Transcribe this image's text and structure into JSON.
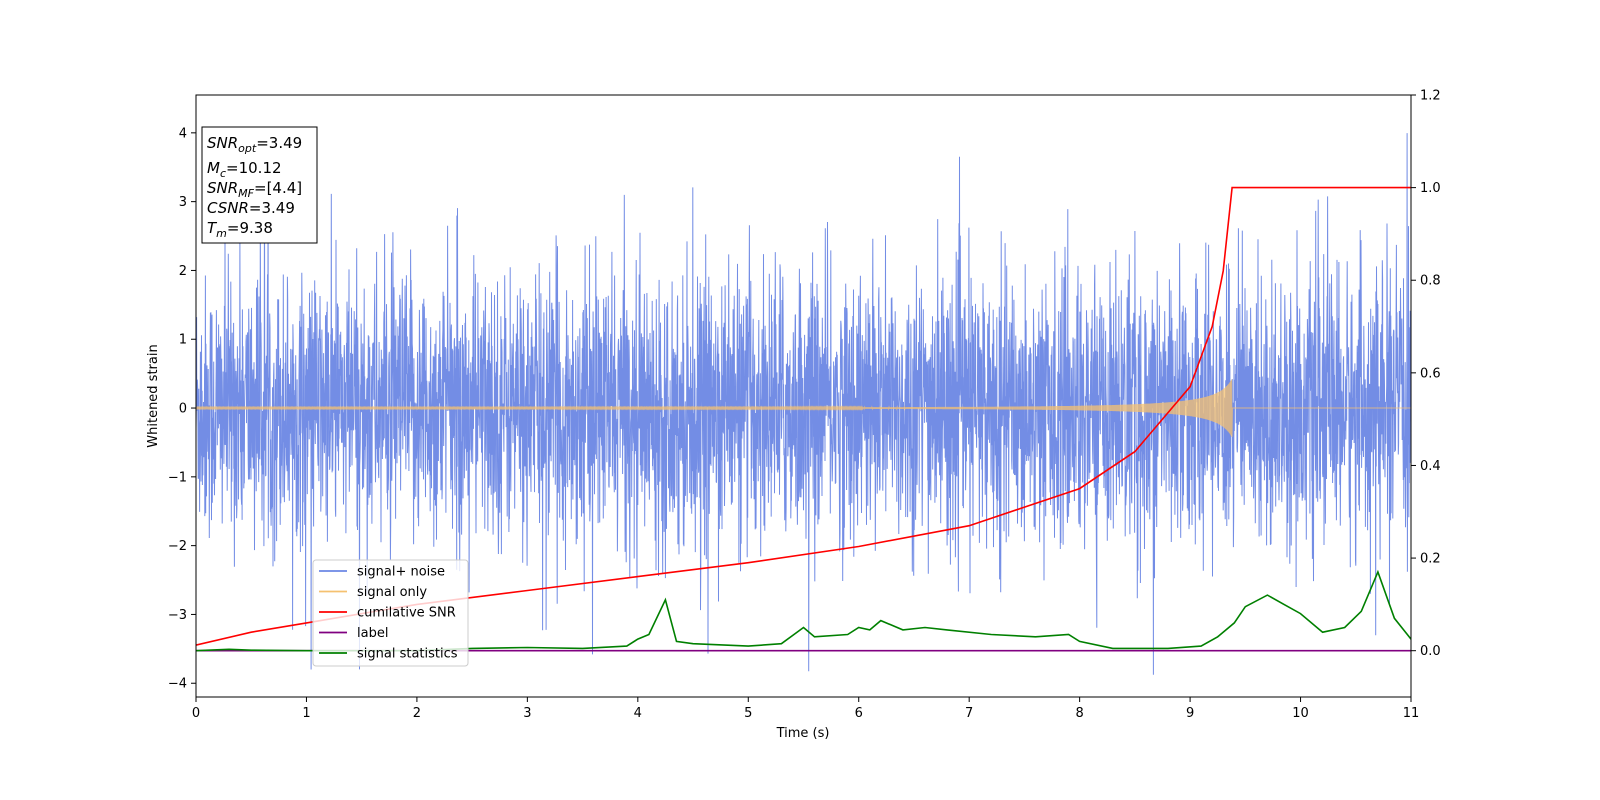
{
  "chart_data": {
    "type": "line",
    "xlabel": "Time (s)",
    "ylabel": "Whitened strain",
    "xlim": [
      0,
      11
    ],
    "ylim_left": [
      -4.2,
      4.55
    ],
    "ylim_right": [
      -0.1,
      1.2
    ],
    "x_ticks": [
      "0",
      "1",
      "2",
      "3",
      "4",
      "5",
      "6",
      "7",
      "8",
      "9",
      "10",
      "11"
    ],
    "y_left_ticks": [
      "−4",
      "−3",
      "−2",
      "−1",
      "0",
      "1",
      "2",
      "3",
      "4"
    ],
    "y_right_ticks": [
      "0.0",
      "0.2",
      "0.4",
      "0.6",
      "0.8",
      "1.0",
      "1.2"
    ],
    "grid": false,
    "legend_position": "lower-left",
    "series": [
      {
        "name": "signal+ noise",
        "axis": "left",
        "color": "#6b87e4",
        "noise_std": 0.95,
        "spike_range": [
          -3.8,
          4.15
        ]
      },
      {
        "name": "signal only",
        "axis": "left",
        "color": "#f5c170",
        "merger_time": 9.38,
        "peak_amplitude": 0.42
      },
      {
        "name": "cumilative SNR",
        "axis": "right",
        "color": "#ff0000",
        "points": [
          [
            0,
            0.012
          ],
          [
            0.5,
            0.04
          ],
          [
            1,
            0.06
          ],
          [
            2,
            0.1
          ],
          [
            3,
            0.13
          ],
          [
            4,
            0.16
          ],
          [
            5,
            0.19
          ],
          [
            6,
            0.225
          ],
          [
            7,
            0.27
          ],
          [
            8,
            0.35
          ],
          [
            8.5,
            0.43
          ],
          [
            9,
            0.57
          ],
          [
            9.2,
            0.7
          ],
          [
            9.3,
            0.82
          ],
          [
            9.38,
            1.0
          ],
          [
            11,
            1.0
          ]
        ]
      },
      {
        "name": "label",
        "axis": "right",
        "color": "#800080",
        "points": [
          [
            0,
            0.0
          ],
          [
            11,
            0.0
          ]
        ]
      },
      {
        "name": "signal statistics",
        "axis": "right",
        "color": "#008000",
        "points": [
          [
            0,
            0.0
          ],
          [
            0.3,
            0.003
          ],
          [
            0.5,
            0.001
          ],
          [
            1,
            0.0
          ],
          [
            2,
            0.0
          ],
          [
            2.5,
            0.005
          ],
          [
            3,
            0.007
          ],
          [
            3.5,
            0.005
          ],
          [
            3.9,
            0.01
          ],
          [
            4.0,
            0.025
          ],
          [
            4.1,
            0.035
          ],
          [
            4.25,
            0.11
          ],
          [
            4.35,
            0.02
          ],
          [
            4.5,
            0.015
          ],
          [
            5,
            0.01
          ],
          [
            5.3,
            0.015
          ],
          [
            5.5,
            0.05
          ],
          [
            5.6,
            0.03
          ],
          [
            5.9,
            0.035
          ],
          [
            6.0,
            0.05
          ],
          [
            6.1,
            0.045
          ],
          [
            6.2,
            0.065
          ],
          [
            6.4,
            0.045
          ],
          [
            6.6,
            0.05
          ],
          [
            6.8,
            0.045
          ],
          [
            7.2,
            0.035
          ],
          [
            7.6,
            0.03
          ],
          [
            7.9,
            0.035
          ],
          [
            8.0,
            0.02
          ],
          [
            8.3,
            0.005
          ],
          [
            8.8,
            0.005
          ],
          [
            9.1,
            0.01
          ],
          [
            9.25,
            0.03
          ],
          [
            9.4,
            0.06
          ],
          [
            9.5,
            0.095
          ],
          [
            9.7,
            0.12
          ],
          [
            9.85,
            0.1
          ],
          [
            10.0,
            0.08
          ],
          [
            10.2,
            0.04
          ],
          [
            10.4,
            0.05
          ],
          [
            10.55,
            0.085
          ],
          [
            10.7,
            0.17
          ],
          [
            10.85,
            0.07
          ],
          [
            11,
            0.025
          ]
        ]
      }
    ],
    "annotation_box": [
      {
        "base": "SNR",
        "sub": "opt",
        "value": "=3.49"
      },
      {
        "base": "M",
        "sub": "c",
        "value": "=10.12"
      },
      {
        "base": "SNR",
        "sub": "MF",
        "value": "=[4.4]"
      },
      {
        "base": "CSNR",
        "sub": "",
        "value": "=3.49"
      },
      {
        "base": "T",
        "sub": "m",
        "value": "=9.38"
      }
    ]
  }
}
